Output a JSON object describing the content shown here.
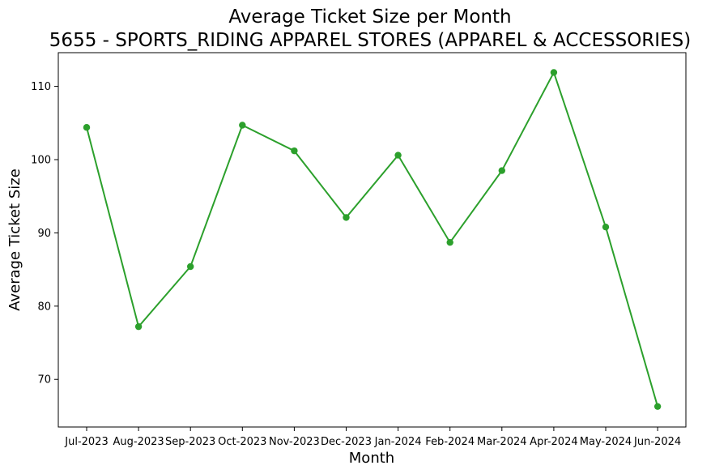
{
  "chart_data": {
    "type": "line",
    "title": "Average Ticket Size per Month",
    "subtitle": "5655 - SPORTS_RIDING APPAREL STORES (APPAREL & ACCESSORIES)",
    "xlabel": "Month",
    "ylabel": "Average Ticket Size",
    "categories": [
      "Jul-2023",
      "Aug-2023",
      "Sep-2023",
      "Oct-2023",
      "Nov-2023",
      "Dec-2023",
      "Jan-2024",
      "Feb-2024",
      "Mar-2024",
      "Apr-2024",
      "May-2024",
      "Jun-2024"
    ],
    "series": [
      {
        "values": [
          104.4,
          77.2,
          85.4,
          104.7,
          101.2,
          92.1,
          100.6,
          88.7,
          98.5,
          111.9,
          90.8,
          66.3
        ],
        "color": "#2ca02c",
        "marker": "circle"
      }
    ],
    "ylim": [
      63.5,
      114.6
    ],
    "yticks": [
      70,
      80,
      90,
      100,
      110
    ],
    "grid": false,
    "legend": "none"
  }
}
